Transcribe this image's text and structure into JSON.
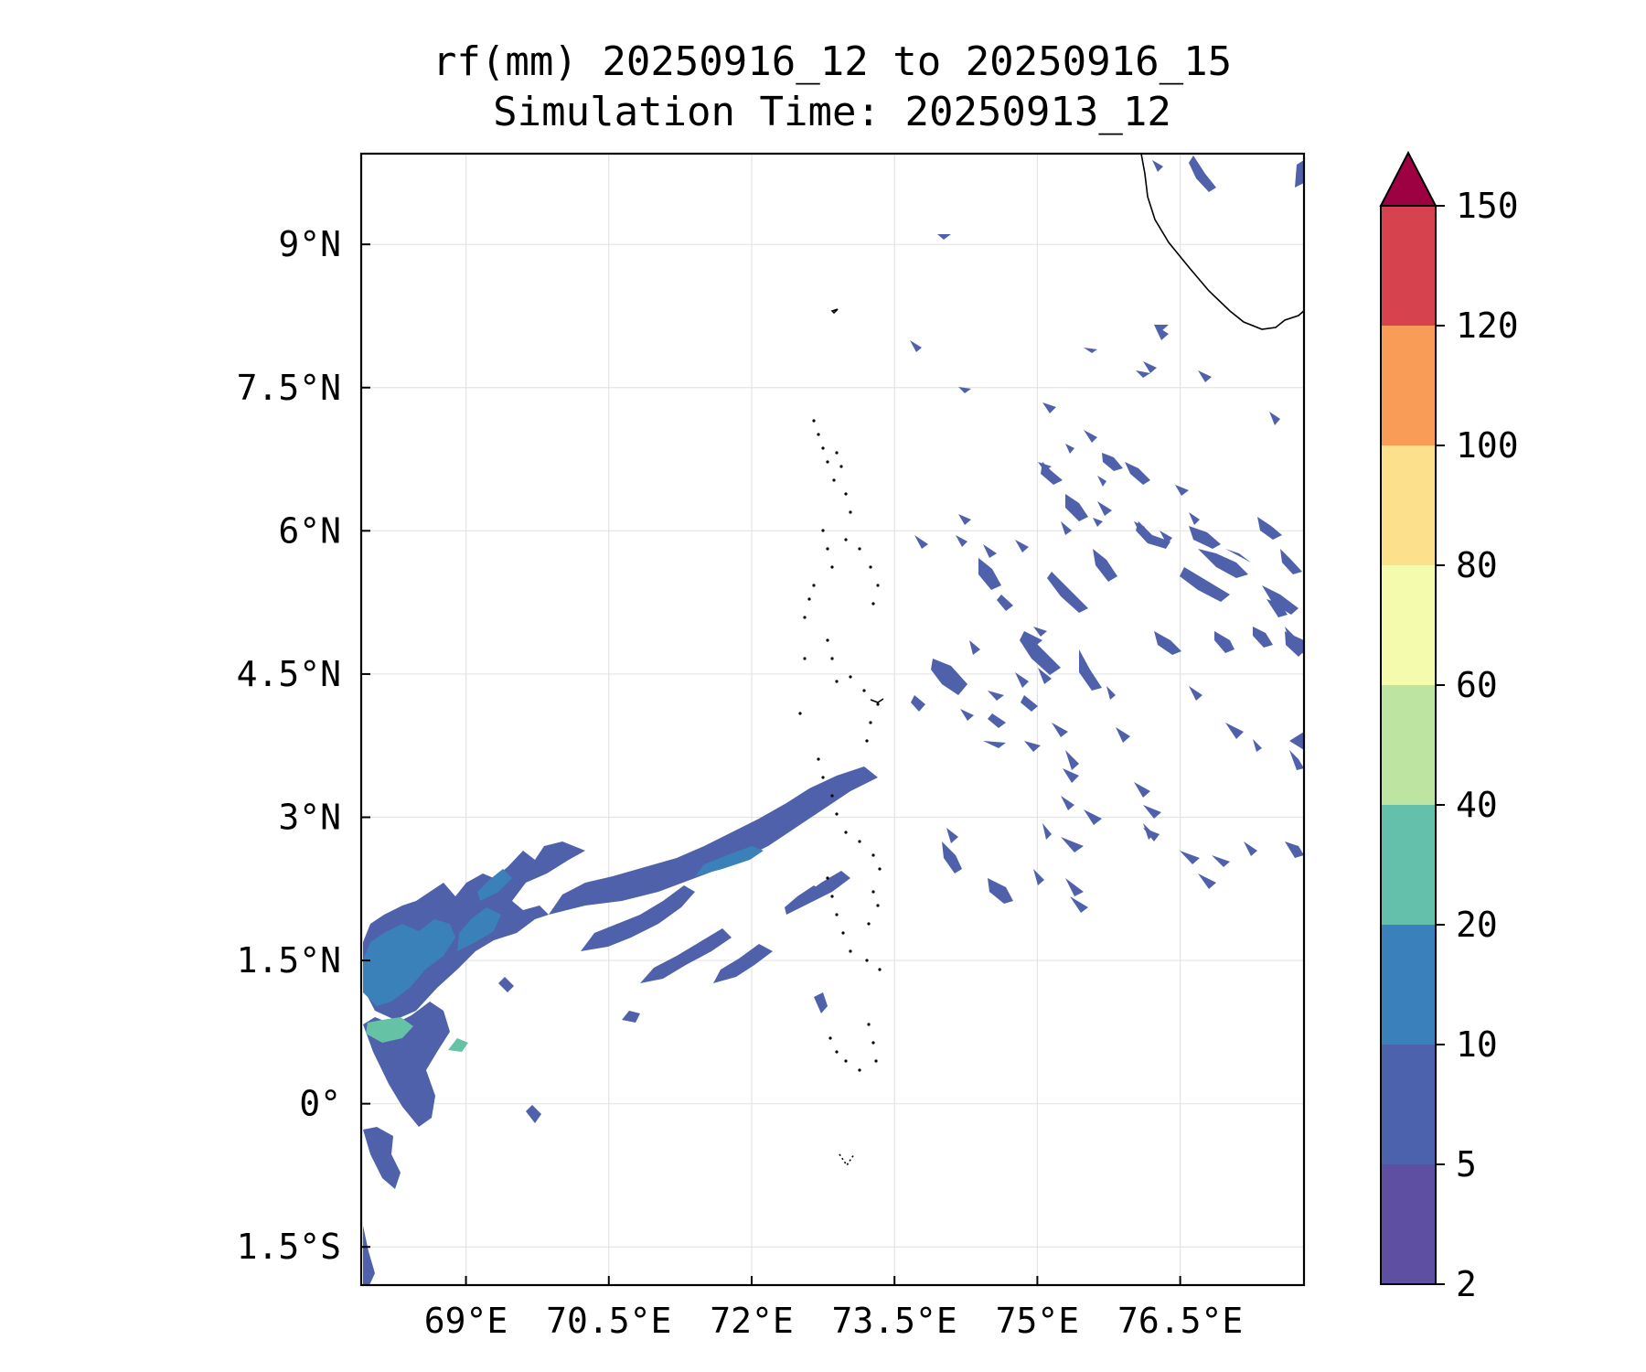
{
  "title": {
    "line1": "rf(mm) 20250916_12 to 20250916_15",
    "line2": "Simulation Time: 20250913_12"
  },
  "map": {
    "extent": {
      "lon_min": 67.9,
      "lon_max": 77.8,
      "lat_min": -1.9,
      "lat_max": 9.95
    },
    "lon_ticks": [
      {
        "value": 69,
        "label": "69°E"
      },
      {
        "value": 70.5,
        "label": "70.5°E"
      },
      {
        "value": 72,
        "label": "72°E"
      },
      {
        "value": 73.5,
        "label": "73.5°E"
      },
      {
        "value": 75,
        "label": "75°E"
      },
      {
        "value": 76.5,
        "label": "76.5°E"
      }
    ],
    "lat_ticks": [
      {
        "value": 9,
        "label": "9°N"
      },
      {
        "value": 7.5,
        "label": "7.5°N"
      },
      {
        "value": 6,
        "label": "6°N"
      },
      {
        "value": 4.5,
        "label": "4.5°N"
      },
      {
        "value": 3,
        "label": "3°N"
      },
      {
        "value": 1.5,
        "label": "1.5°N"
      },
      {
        "value": 0,
        "label": "0°"
      },
      {
        "value": -1.5,
        "label": "1.5°S"
      }
    ],
    "grid": true,
    "colors": {
      "lt5": "#5e4fa2",
      "b5_10": "#4f61ab",
      "b10_20": "#3a81ba",
      "b20_40": "#66c2a5"
    }
  },
  "colorbar": {
    "levels": [
      {
        "label": "2",
        "color": "#5e4fa2"
      },
      {
        "label": "5",
        "color": "#4d62ac"
      },
      {
        "label": "10",
        "color": "#3a80ba"
      },
      {
        "label": "20",
        "color": "#65c0ab"
      },
      {
        "label": "40",
        "color": "#bde4a0"
      },
      {
        "label": "60",
        "color": "#f4fbad"
      },
      {
        "label": "80",
        "color": "#fde08b"
      },
      {
        "label": "100",
        "color": "#f99c58"
      },
      {
        "label": "120",
        "color": "#d7424f"
      },
      {
        "label": "150",
        "color": "#9e0142"
      }
    ],
    "extend": "max"
  }
}
